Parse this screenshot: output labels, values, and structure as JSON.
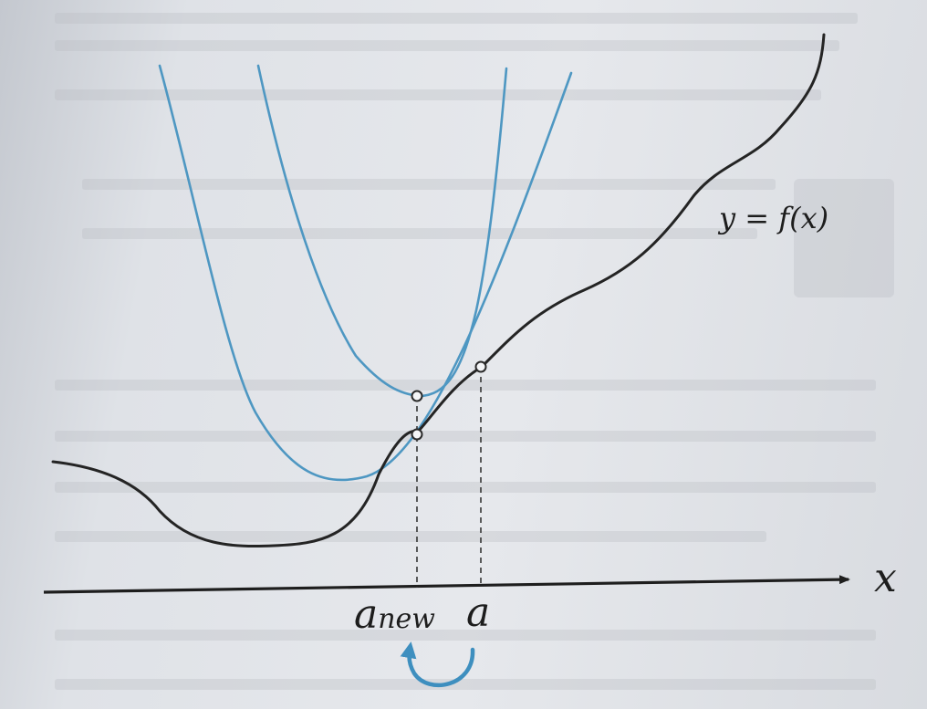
{
  "diagram": {
    "function_label": "y = f(x)",
    "x_axis_label": "x",
    "point_a_label": "a",
    "point_anew_main": "a",
    "point_anew_sub": "new",
    "colors": {
      "function_curve": "#242424",
      "approximation_curves": "#4e97c2",
      "update_arrow": "#3e8fbf",
      "axis": "#1e1e1e"
    }
  }
}
